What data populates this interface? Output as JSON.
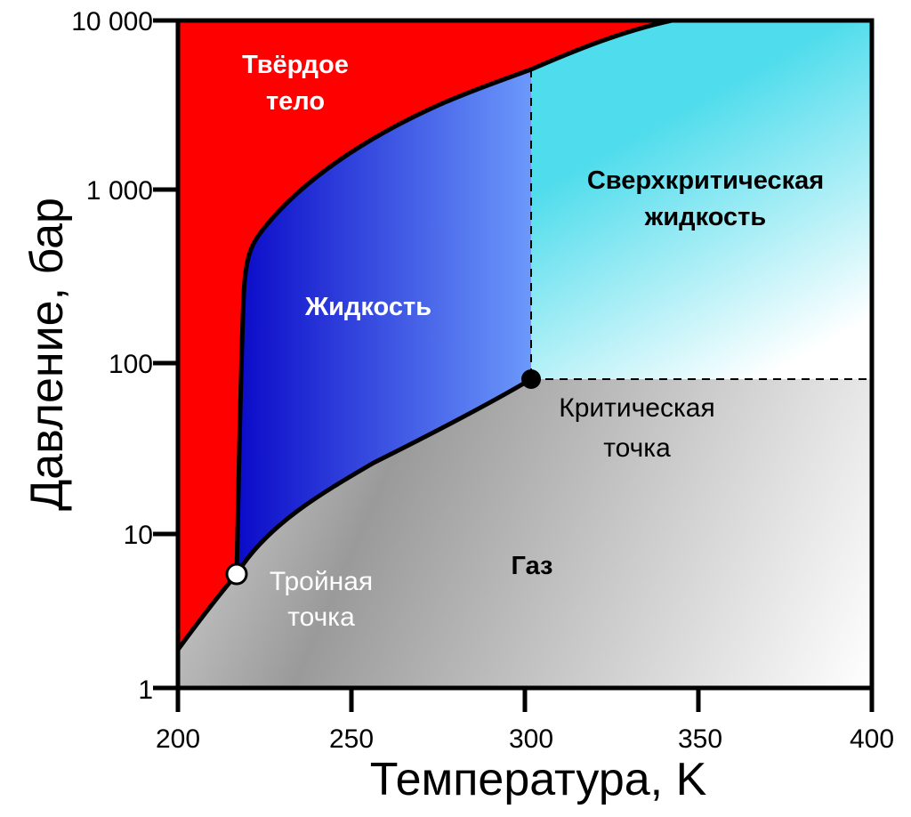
{
  "diagram": {
    "y_axis_title": "Давление, бар",
    "x_axis_title": "Температура, K",
    "x_ticks": [
      "200",
      "250",
      "300",
      "350",
      "400"
    ],
    "y_ticks": [
      "1",
      "10",
      "100",
      "1 000",
      "10 000"
    ],
    "regions": {
      "solid_line1": "Твёрдое",
      "solid_line2": "тело",
      "liquid": "Жидкость",
      "supercritical_line1": "Сверхкритическая",
      "supercritical_line2": "жидкость",
      "gas": "Газ"
    },
    "critical_point": {
      "label_line1": "Критическая",
      "label_line2": "точка",
      "temperature_K": 300,
      "pressure_bar": 80
    },
    "triple_point": {
      "label_line1": "Тройная",
      "label_line2": "точка",
      "temperature_K": 217,
      "pressure_bar": 5.5
    },
    "colors": {
      "solid": "#ff0000",
      "liquid_dark": "#0a0ac8",
      "liquid_light": "#6a96fa",
      "supercritical": "#4fdcec",
      "gas_dark": "#999999",
      "gas_light": "#ffffff",
      "border": "#000000"
    }
  }
}
